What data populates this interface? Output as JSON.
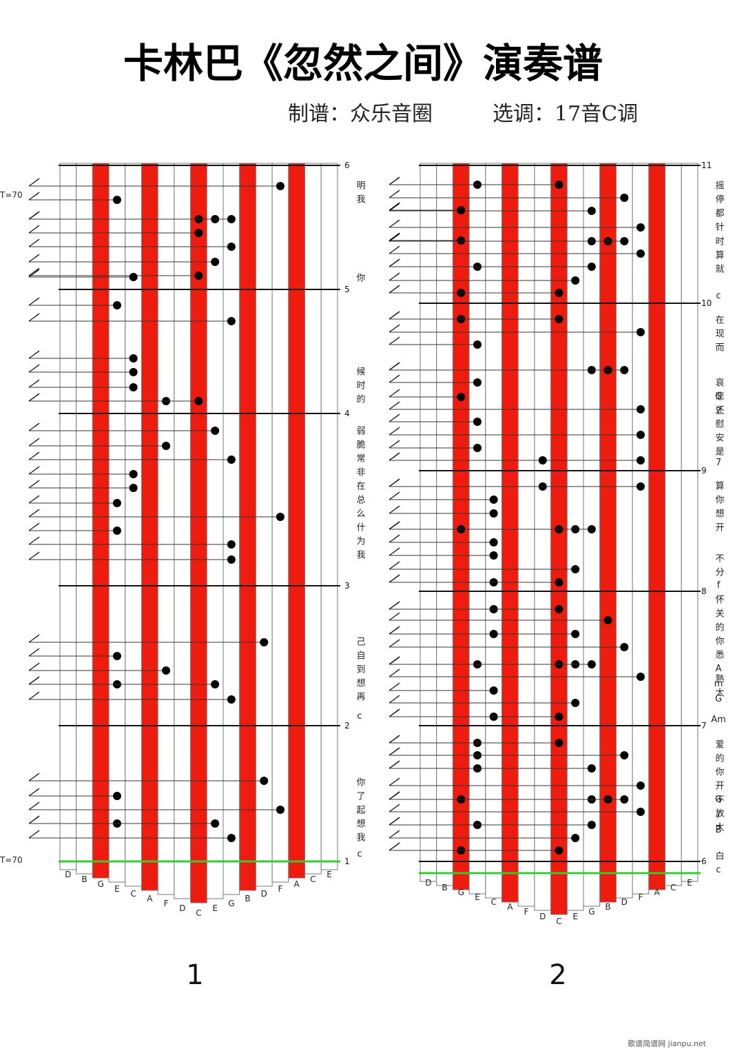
{
  "header": {
    "title": "卡林巴《忽然之间》演奏谱",
    "arranger": "制谱：众乐音圈",
    "key": "选调：17音C调"
  },
  "panels": [
    {
      "tempo": [
        "T=70",
        "T=70"
      ],
      "measures": [
        6,
        5,
        4,
        3,
        2,
        1
      ],
      "keys": [
        "D",
        "B",
        "G",
        "E",
        "C",
        "A",
        "F",
        "D",
        "C",
        "E",
        "G",
        "B",
        "D",
        "F",
        "A",
        "C",
        "E"
      ],
      "lyrics": [
        "明我",
        "你",
        "候时的",
        "弱脆常非在总么什为我",
        "己自到想再",
        "c",
        "你了起想我",
        "c"
      ],
      "page": "1"
    },
    {
      "tempo": [],
      "measures": [
        11,
        10,
        9,
        8,
        7,
        6
      ],
      "keys": [
        "D",
        "B",
        "G",
        "E",
        "C",
        "A",
        "F",
        "D",
        "C",
        "E",
        "G",
        "B",
        "D",
        "F",
        "A",
        "C",
        "E"
      ],
      "lyrics": [
        "摇停都针",
        "时算就",
        "c",
        "在现而",
        "哀G7",
        "悲还慰安是",
        "7",
        "算你想开",
        "不分",
        "f",
        "怀关的你悉AmG",
        "熟太",
        "Am",
        "爱的你开G/B",
        "不放太",
        "白c"
      ],
      "page": "2"
    }
  ],
  "watermark": "歌谱简谱网 jianpu.net"
}
